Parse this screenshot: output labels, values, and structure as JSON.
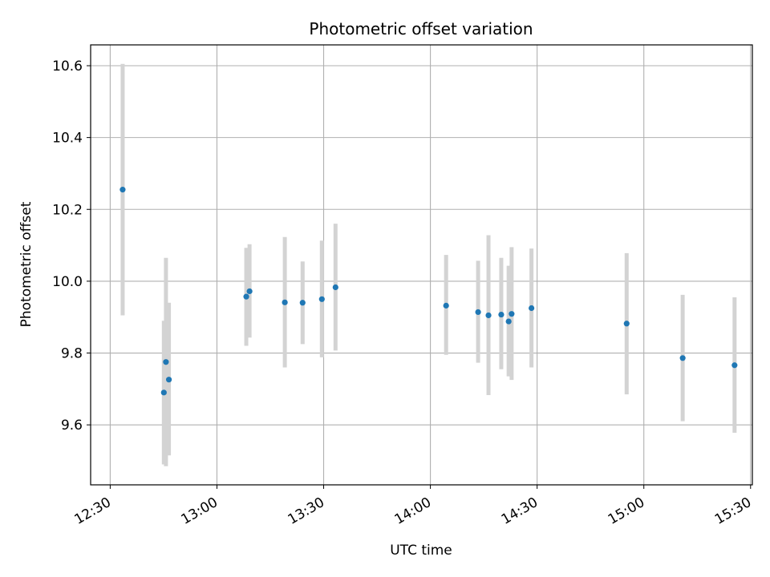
{
  "chart_data": {
    "type": "scatter",
    "title": "Photometric offset variation",
    "xlabel": "UTC time",
    "ylabel": "Photometric offset",
    "x_tick_labels": [
      "12:30",
      "13:00",
      "13:30",
      "14:00",
      "14:30",
      "15:00",
      "15:30"
    ],
    "y_tick_labels": [
      "9.6",
      "9.8",
      "10.0",
      "10.2",
      "10.4",
      "10.6"
    ],
    "y_ticks": [
      9.6,
      9.8,
      10.0,
      10.2,
      10.4,
      10.6
    ],
    "xlim": [
      "12:24:30",
      "15:30:30"
    ],
    "ylim": [
      9.433,
      10.658
    ],
    "grid": true,
    "point_color": "#1f77b4",
    "errorbar_color": "#d3d3d3",
    "points": [
      {
        "x": "12:33:30",
        "y": 10.255,
        "ylow": 9.905,
        "yhigh": 10.605
      },
      {
        "x": "12:45:05",
        "y": 9.69,
        "ylow": 9.49,
        "yhigh": 9.89
      },
      {
        "x": "12:45:40",
        "y": 9.775,
        "ylow": 9.485,
        "yhigh": 10.065
      },
      {
        "x": "12:46:30",
        "y": 9.726,
        "ylow": 9.515,
        "yhigh": 9.94
      },
      {
        "x": "13:08:15",
        "y": 9.957,
        "ylow": 9.82,
        "yhigh": 10.093
      },
      {
        "x": "13:09:10",
        "y": 9.972,
        "ylow": 9.843,
        "yhigh": 10.103
      },
      {
        "x": "13:19:05",
        "y": 9.941,
        "ylow": 9.76,
        "yhigh": 10.123
      },
      {
        "x": "13:24:05",
        "y": 9.94,
        "ylow": 9.825,
        "yhigh": 10.055
      },
      {
        "x": "13:29:30",
        "y": 9.95,
        "ylow": 9.788,
        "yhigh": 10.113
      },
      {
        "x": "13:33:20",
        "y": 9.983,
        "ylow": 9.807,
        "yhigh": 10.16
      },
      {
        "x": "14:04:25",
        "y": 9.932,
        "ylow": 9.795,
        "yhigh": 10.073
      },
      {
        "x": "14:13:25",
        "y": 9.914,
        "ylow": 9.773,
        "yhigh": 10.057
      },
      {
        "x": "14:16:20",
        "y": 9.905,
        "ylow": 9.683,
        "yhigh": 10.128
      },
      {
        "x": "14:19:55",
        "y": 9.907,
        "ylow": 9.755,
        "yhigh": 10.065
      },
      {
        "x": "14:22:00",
        "y": 9.888,
        "ylow": 9.735,
        "yhigh": 10.043
      },
      {
        "x": "14:22:50",
        "y": 9.909,
        "ylow": 9.725,
        "yhigh": 10.095
      },
      {
        "x": "14:28:25",
        "y": 9.925,
        "ylow": 9.76,
        "yhigh": 10.091
      },
      {
        "x": "14:55:10",
        "y": 9.882,
        "ylow": 9.685,
        "yhigh": 10.078
      },
      {
        "x": "15:10:55",
        "y": 9.786,
        "ylow": 9.61,
        "yhigh": 9.962
      },
      {
        "x": "15:25:30",
        "y": 9.766,
        "ylow": 9.578,
        "yhigh": 9.955
      }
    ]
  }
}
